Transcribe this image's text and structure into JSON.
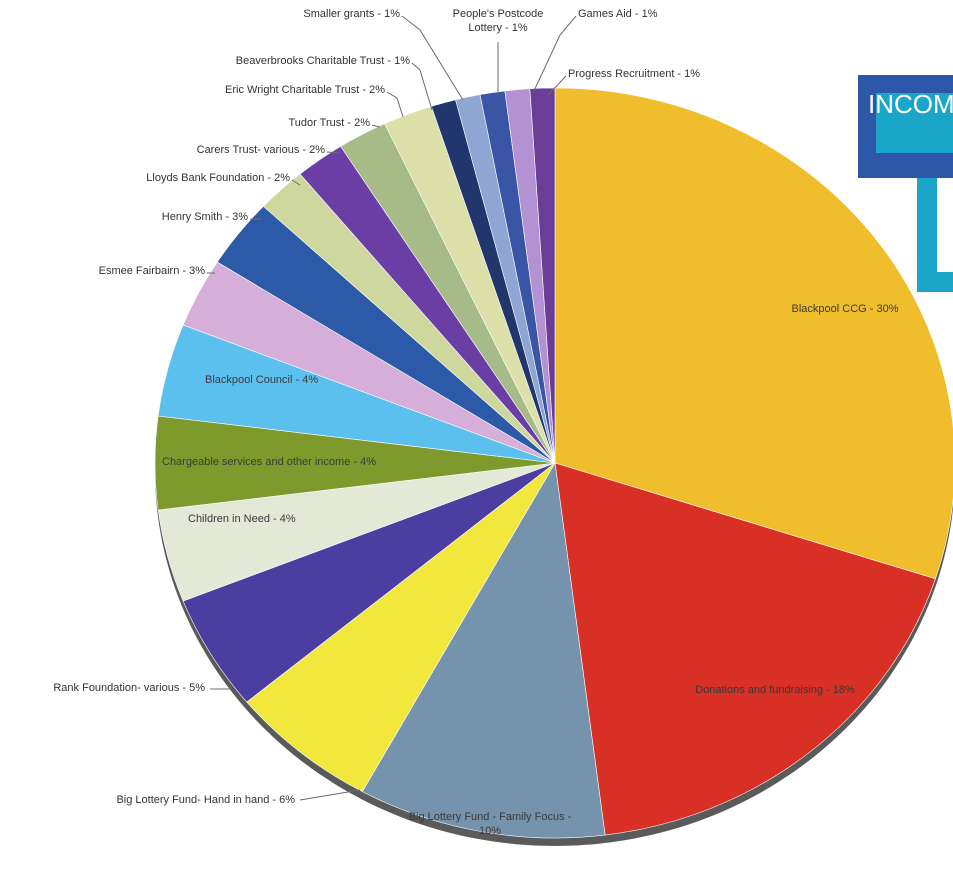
{
  "banner": {
    "text": "INCOME"
  },
  "chart_data": {
    "type": "pie",
    "title": "",
    "slices": [
      {
        "label": "Blackpool CCG - 30%",
        "value": 30,
        "color": "#f0bd2c"
      },
      {
        "label": "Donations and fundraising - 18%",
        "value": 18,
        "color": "#d93026"
      },
      {
        "label": "Big Lottery Fund - Family Focus - 10%",
        "value": 10,
        "color": "#7593ad"
      },
      {
        "label": "Big Lottery Fund- Hand in hand - 6%",
        "value": 6,
        "color": "#f1e73d"
      },
      {
        "label": "Rank Foundation- various - 5%",
        "value": 5,
        "color": "#4c3ea1"
      },
      {
        "label": "Children in Need - 4%",
        "value": 4,
        "color": "#e4e8d6"
      },
      {
        "label": "Chargeable services and other income - 4%",
        "value": 4,
        "color": "#7f9a2c"
      },
      {
        "label": "Blackpool Council - 4%",
        "value": 4,
        "color": "#5bc0ed"
      },
      {
        "label": "Esmee Fairbairn - 3%",
        "value": 3,
        "color": "#d5afda"
      },
      {
        "label": "Henry Smith - 3%",
        "value": 3,
        "color": "#2c59a8"
      },
      {
        "label": "Lloyds Bank Foundation - 2%",
        "value": 2,
        "color": "#ced79e"
      },
      {
        "label": "Carers Trust- various - 2%",
        "value": 2,
        "color": "#6b3ea6"
      },
      {
        "label": "Tudor Trust - 2%",
        "value": 2,
        "color": "#a6bb88"
      },
      {
        "label": "Eric Wright Charitable Trust - 2%",
        "value": 2,
        "color": "#dcdfa8"
      },
      {
        "label": "Beaverbrooks Charitable Trust - 1%",
        "value": 1,
        "color": "#22366e"
      },
      {
        "label": "Smaller grants - 1%",
        "value": 1,
        "color": "#8fa5d4"
      },
      {
        "label": "People's Postcode Lottery - 1%",
        "value": 1,
        "color": "#3a55a6"
      },
      {
        "label": "Games Aid - 1%",
        "value": 1,
        "color": "#b491d3"
      },
      {
        "label": "Progress Recruitment - 1%",
        "value": 1,
        "color": "#6a3d96"
      }
    ]
  }
}
